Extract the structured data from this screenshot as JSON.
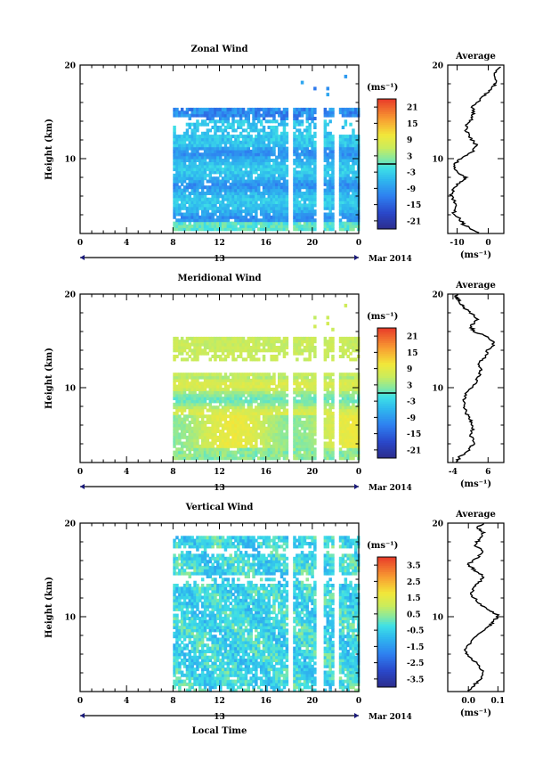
{
  "figure": {
    "xlabel": "Local Time",
    "date_label": "Mar 2014",
    "day_label": "13",
    "unit_label": "(ms⁻¹)",
    "avg_title": "Average",
    "height_label": "Height (km)"
  },
  "chart_data": [
    {
      "type": "heatmap",
      "title": "Zonal Wind",
      "ylabel": "Height (km)",
      "xlabel": "",
      "xlim": [
        0,
        24
      ],
      "ylim": [
        2,
        20
      ],
      "x_ticks": [
        "0",
        "4",
        "8",
        "12",
        "16",
        "20",
        "0"
      ],
      "y_ticks": [
        "10",
        "20"
      ],
      "colorbar": {
        "label": "(ms⁻¹)",
        "ticks": [
          "21",
          "15",
          "9",
          "3",
          "-3",
          "-9",
          "-15",
          "-21"
        ],
        "range": [
          -24,
          24
        ],
        "zero_line": true
      },
      "data_window_hours": [
        8,
        24
      ],
      "gaps_hours": [
        [
          17.8,
          18.2
        ],
        [
          20.3,
          20.9
        ],
        [
          21.8,
          22.2
        ]
      ]
    },
    {
      "type": "line",
      "title": "Average",
      "xlabel": "(ms⁻¹)",
      "xlim": [
        -13,
        5
      ],
      "ylim": [
        2,
        20
      ],
      "x_ticks": [
        "-10",
        "0"
      ],
      "y_ticks": [
        "10",
        "20"
      ],
      "series": [
        {
          "x": [
            -3,
            -6,
            -8,
            -9,
            -11,
            -10,
            -12,
            -11,
            -9,
            -7,
            -10,
            -11,
            -9,
            -5,
            -4,
            -6,
            -7,
            -7,
            -5,
            -5,
            -5,
            -3,
            -1,
            1,
            3,
            2,
            4
          ],
          "y": [
            2,
            2.6,
            3,
            3.5,
            4.2,
            5,
            6,
            6.8,
            7.5,
            8,
            8.6,
            9.3,
            10,
            10.8,
            11.5,
            12.3,
            13,
            13.6,
            14.3,
            14.8,
            15.5,
            16.2,
            16.8,
            17.5,
            18.2,
            19,
            19.8
          ]
        }
      ]
    },
    {
      "type": "heatmap",
      "title": "Meridional Wind",
      "ylabel": "Height (km)",
      "xlabel": "",
      "xlim": [
        0,
        24
      ],
      "ylim": [
        2,
        20
      ],
      "x_ticks": [
        "0",
        "4",
        "8",
        "12",
        "16",
        "20",
        "0"
      ],
      "y_ticks": [
        "10",
        "20"
      ],
      "colorbar": {
        "label": "(ms⁻¹)",
        "ticks": [
          "21",
          "15",
          "9",
          "3",
          "-3",
          "-9",
          "-15",
          "-21"
        ],
        "range": [
          -24,
          24
        ],
        "zero_line": true
      },
      "data_window_hours": [
        8,
        24
      ],
      "gaps_hours": [
        [
          17.8,
          18.2
        ],
        [
          20.3,
          20.9
        ],
        [
          21.8,
          22.2
        ]
      ]
    },
    {
      "type": "line",
      "title": "Average",
      "xlabel": "(ms⁻¹)",
      "xlim": [
        -5.5,
        10.5
      ],
      "ylim": [
        2,
        20
      ],
      "x_ticks": [
        "-4",
        "6"
      ],
      "y_ticks": [
        "10",
        "20"
      ],
      "series": [
        {
          "x": [
            -3,
            -2,
            0,
            2,
            1,
            2,
            1,
            0,
            -1,
            -1,
            0,
            2,
            3,
            4,
            3,
            5,
            6,
            8,
            6,
            2,
            1,
            3,
            1,
            -1,
            -2,
            -3,
            -3
          ],
          "y": [
            2,
            2.6,
            3.2,
            4,
            5,
            5.8,
            6.5,
            7.2,
            8,
            8.7,
            9.5,
            10.3,
            11,
            11.8,
            12.5,
            13.2,
            14,
            14.8,
            15.4,
            16,
            16.6,
            17.3,
            18,
            18.6,
            19.2,
            19.6,
            20
          ]
        }
      ]
    },
    {
      "type": "heatmap",
      "title": "Vertical Wind",
      "ylabel": "Height (km)",
      "xlabel": "Local Time",
      "xlim": [
        0,
        24
      ],
      "ylim": [
        2,
        20
      ],
      "x_ticks": [
        "0",
        "4",
        "8",
        "12",
        "16",
        "20",
        "0"
      ],
      "y_ticks": [
        "10",
        "20"
      ],
      "colorbar": {
        "label": "(ms⁻¹)",
        "ticks": [
          "3.5",
          "2.5",
          "1.5",
          "0.5",
          "-0.5",
          "-1.5",
          "-2.5",
          "-3.5"
        ],
        "range": [
          -4,
          4
        ],
        "zero_line": false
      },
      "data_window_hours": [
        8,
        24
      ],
      "gaps_hours": [
        [
          17.8,
          18.2
        ],
        [
          20.3,
          20.9
        ],
        [
          21.8,
          22.2
        ]
      ]
    },
    {
      "type": "line",
      "title": "Average",
      "xlabel": "(ms⁻¹)",
      "xlim": [
        -0.07,
        0.12
      ],
      "ylim": [
        2,
        20
      ],
      "x_ticks": [
        "0.0",
        "0.1"
      ],
      "y_ticks": [
        "10",
        "20"
      ],
      "series": [
        {
          "x": [
            0.0,
            0.02,
            0.04,
            0.05,
            0.03,
            0.0,
            -0.01,
            0.01,
            0.04,
            0.07,
            0.09,
            0.1,
            0.06,
            0.03,
            0.01,
            0.02,
            0.04,
            0.05,
            0.02,
            0.0,
            0.03,
            0.05,
            0.02,
            0.04,
            0.05,
            0.03,
            0.05
          ],
          "y": [
            2,
            2.7,
            3.4,
            4.2,
            5,
            5.8,
            6.6,
            7.4,
            8.2,
            9,
            9.6,
            10.2,
            10.8,
            11.6,
            12.4,
            13.2,
            13.8,
            14.4,
            15,
            15.6,
            16.3,
            17,
            17.7,
            18.3,
            19,
            19.5,
            20
          ]
        }
      ]
    }
  ]
}
